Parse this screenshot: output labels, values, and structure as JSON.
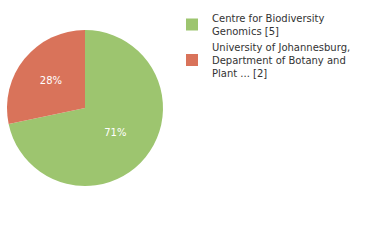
{
  "chart_data": {
    "type": "pie",
    "categories": [
      "Centre for Biodiversity Genomics [5]",
      "University of Johannesburg, Department of Botany and Plant ... [2]"
    ],
    "values": [
      71,
      28
    ],
    "value_labels": [
      "71%",
      "28%"
    ],
    "colors": [
      "#9dc56f",
      "#d9735a"
    ],
    "data_labels": true,
    "legend": "upper right"
  }
}
